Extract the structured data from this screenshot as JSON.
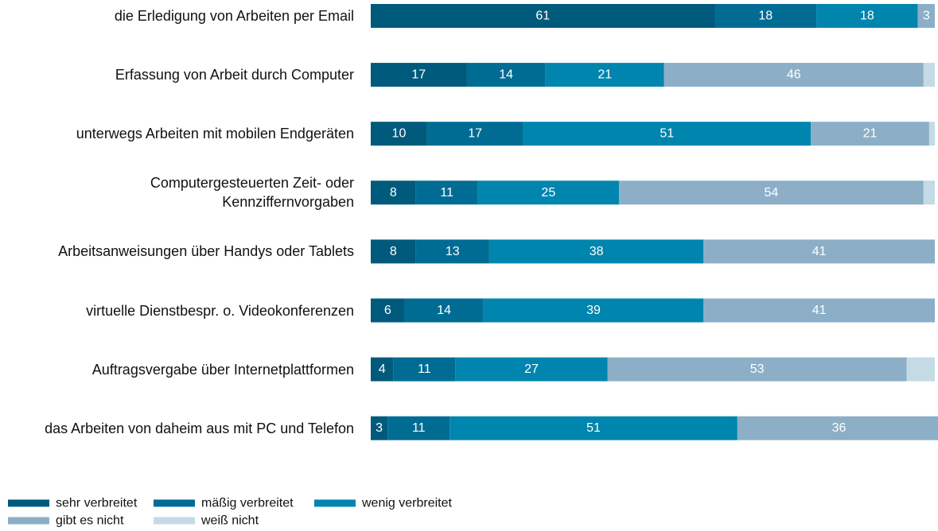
{
  "chart_data": {
    "type": "stacked_barh",
    "categories": [
      "die Erledigung von Arbeiten per Email",
      "Erfassung von Arbeit durch Computer",
      "unterwegs Arbeiten mit mobilen Endgeräten",
      "Computergesteuerten Zeit- oder\nKennziffernvorgaben",
      "Arbeitsanweisungen über Handys oder Tablets",
      "virtuelle Dienstbespr. o. Videokonferenzen",
      "Auftragsvergabe über Internetplattformen",
      "das Arbeiten von daheim aus mit PC und Telefon"
    ],
    "series": [
      {
        "name": "sehr verbreitet",
        "color": "#005a7c",
        "values": [
          61,
          17,
          10,
          8,
          8,
          6,
          4,
          3
        ]
      },
      {
        "name": "mäßig verbreitet",
        "color": "#006c94",
        "values": [
          18,
          14,
          17,
          11,
          13,
          14,
          11,
          11
        ]
      },
      {
        "name": "wenig verbreitet",
        "color": "#0085ae",
        "values": [
          18,
          21,
          51,
          25,
          38,
          39,
          27,
          51
        ]
      },
      {
        "name": "gibt es nicht",
        "color": "#8cafc7",
        "values": [
          3,
          46,
          21,
          54,
          41,
          41,
          53,
          36
        ]
      },
      {
        "name": "weiß nicht",
        "color": "#c4dae4",
        "values": [
          0,
          2,
          1,
          2,
          0,
          0,
          5,
          0
        ],
        "show_labels": false
      }
    ],
    "xlim": [
      0,
      100
    ]
  }
}
